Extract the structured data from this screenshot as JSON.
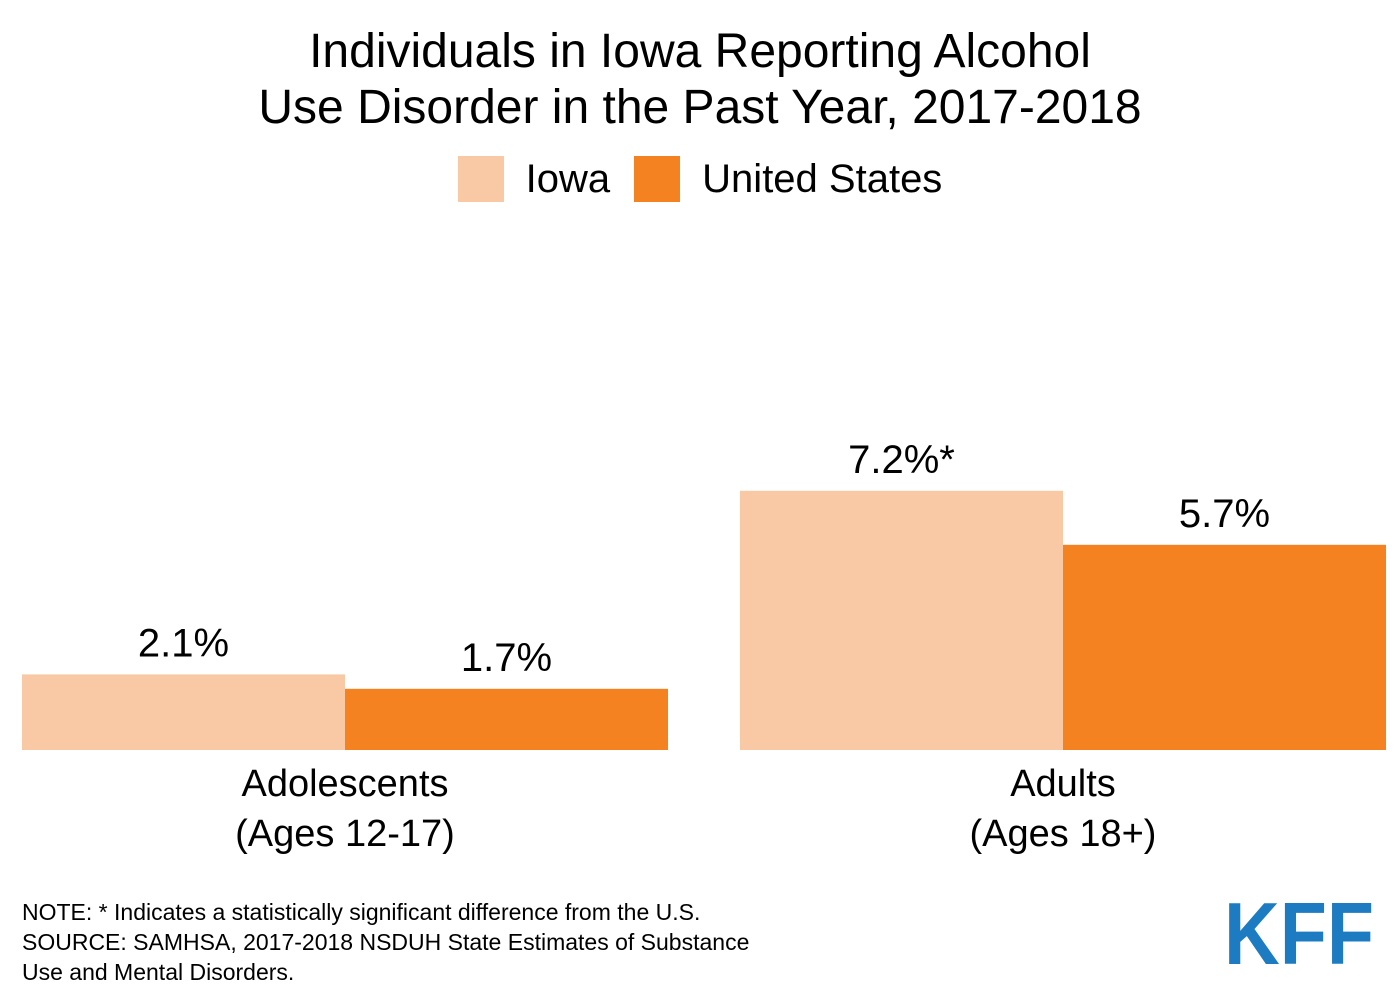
{
  "title": {
    "line1": "Individuals in Iowa Reporting Alcohol",
    "line2": "Use Disorder in the Past Year, 2017-2018"
  },
  "legend": [
    {
      "name": "Iowa",
      "color": "#f9c8a4"
    },
    {
      "name": "United States",
      "color": "#f58220"
    }
  ],
  "chart_data": {
    "type": "bar",
    "title": "Individuals in Iowa Reporting Alcohol Use Disorder in the Past Year, 2017-2018",
    "xlabel": "",
    "ylabel": "",
    "ylim": [
      0,
      12
    ],
    "grid": false,
    "legend_position": "top-center",
    "categories": [
      {
        "line1": "Adolescents",
        "line2": "(Ages 12-17)"
      },
      {
        "line1": "Adults",
        "line2": "(Ages 18+)"
      }
    ],
    "series": [
      {
        "name": "Iowa",
        "color": "#f9c8a4",
        "values": [
          2.1,
          7.2
        ],
        "labels": [
          "2.1%",
          "7.2%*"
        ]
      },
      {
        "name": "United States",
        "color": "#f58220",
        "values": [
          1.7,
          5.7
        ],
        "labels": [
          "1.7%",
          "5.7%"
        ]
      }
    ]
  },
  "footer": {
    "note": "NOTE: * Indicates a statistically significant difference from the U.S.",
    "source_line1": "SOURCE: SAMHSA, 2017-2018 NSDUH State Estimates of Substance",
    "source_line2": "Use and Mental Disorders."
  },
  "logo": {
    "text": "KFF",
    "color": "#1d7bc1"
  }
}
